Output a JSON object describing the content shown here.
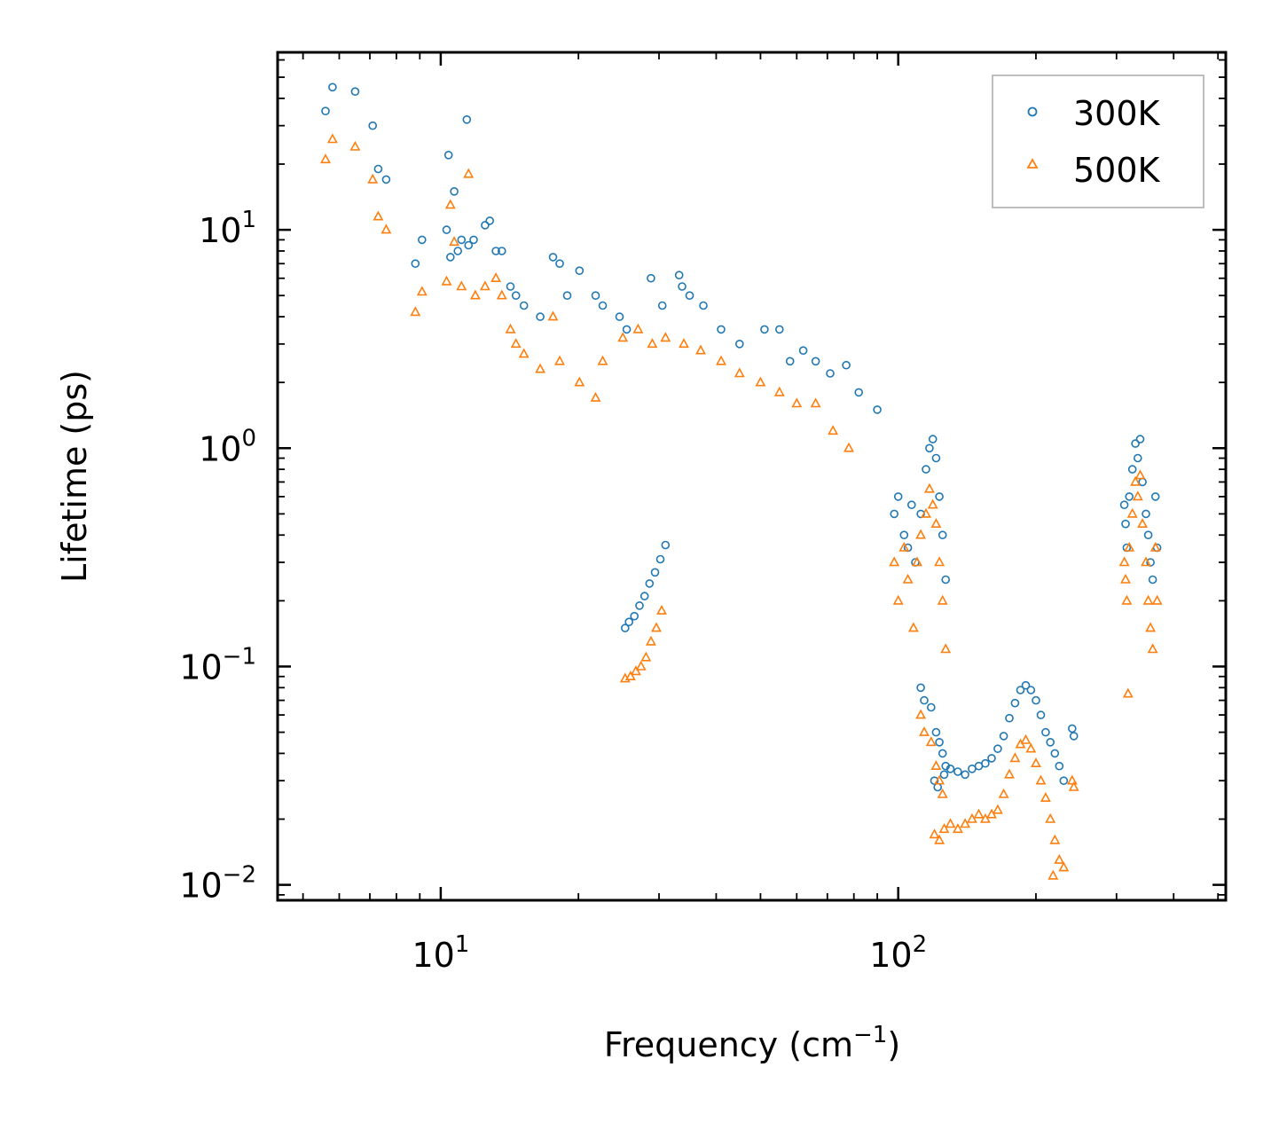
{
  "chart_data": {
    "type": "scatter",
    "xscale": "log",
    "yscale": "log",
    "xlabel": "Frequency (cm",
    "xlabel_exp": "−1",
    "xlabel_close": ")",
    "ylabel": "Lifetime (ps)",
    "xlim": [
      4.4,
      520
    ],
    "ylim": [
      0.0085,
      65
    ],
    "xticks": [
      {
        "value": 10,
        "base": "10",
        "exp": "1"
      },
      {
        "value": 100,
        "base": "10",
        "exp": "2"
      }
    ],
    "yticks": [
      {
        "value": 10,
        "base": "10",
        "exp": "1"
      },
      {
        "value": 1,
        "base": "10",
        "exp": "0"
      },
      {
        "value": 0.1,
        "base": "10",
        "exp": "−1"
      },
      {
        "value": 0.01,
        "base": "10",
        "exp": "−2"
      }
    ],
    "legend": {
      "position": "top-right"
    },
    "series": [
      {
        "name": "300K",
        "marker": "circle",
        "color": "#1f77b4",
        "points": [
          [
            5.6,
            35
          ],
          [
            5.8,
            45
          ],
          [
            6.5,
            43
          ],
          [
            7.1,
            30
          ],
          [
            7.3,
            19
          ],
          [
            7.6,
            17
          ],
          [
            8.8,
            7
          ],
          [
            9.1,
            9
          ],
          [
            10.3,
            10
          ],
          [
            10.4,
            22
          ],
          [
            10.5,
            7.5
          ],
          [
            10.7,
            15
          ],
          [
            10.9,
            8
          ],
          [
            11.1,
            9
          ],
          [
            11.4,
            32
          ],
          [
            11.5,
            8.5
          ],
          [
            11.8,
            9
          ],
          [
            12.5,
            10.5
          ],
          [
            12.8,
            11
          ],
          [
            13.2,
            8
          ],
          [
            13.6,
            8
          ],
          [
            14.2,
            5.5
          ],
          [
            14.6,
            5
          ],
          [
            15.2,
            4.5
          ],
          [
            16.5,
            4
          ],
          [
            17.6,
            7.5
          ],
          [
            18.2,
            7
          ],
          [
            18.9,
            5
          ],
          [
            20.1,
            6.5
          ],
          [
            21.8,
            5
          ],
          [
            22.6,
            4.5
          ],
          [
            24.6,
            4
          ],
          [
            25.5,
            3.5
          ],
          [
            28.8,
            6
          ],
          [
            30.5,
            4.5
          ],
          [
            33.2,
            6.2
          ],
          [
            33.7,
            5.5
          ],
          [
            35,
            5
          ],
          [
            37.5,
            4.5
          ],
          [
            41,
            3.5
          ],
          [
            45,
            3
          ],
          [
            51,
            3.5
          ],
          [
            55,
            3.5
          ],
          [
            58,
            2.5
          ],
          [
            62,
            2.8
          ],
          [
            66,
            2.5
          ],
          [
            71,
            2.2
          ],
          [
            77,
            2.4
          ],
          [
            82,
            1.8
          ],
          [
            90,
            1.5
          ],
          [
            25.3,
            0.15
          ],
          [
            25.8,
            0.16
          ],
          [
            26.5,
            0.17
          ],
          [
            27.2,
            0.19
          ],
          [
            27.9,
            0.21
          ],
          [
            28.6,
            0.24
          ],
          [
            29.4,
            0.27
          ],
          [
            30.2,
            0.31
          ],
          [
            31,
            0.36
          ],
          [
            98,
            0.5
          ],
          [
            100,
            0.6
          ],
          [
            103,
            0.4
          ],
          [
            105,
            0.35
          ],
          [
            107,
            0.55
          ],
          [
            109,
            0.3
          ],
          [
            112,
            0.5
          ],
          [
            115,
            0.8
          ],
          [
            117,
            1.0
          ],
          [
            119,
            1.1
          ],
          [
            121,
            0.9
          ],
          [
            123,
            0.6
          ],
          [
            125,
            0.4
          ],
          [
            127,
            0.25
          ],
          [
            112,
            0.08
          ],
          [
            114,
            0.07
          ],
          [
            118,
            0.065
          ],
          [
            121,
            0.05
          ],
          [
            123,
            0.045
          ],
          [
            125,
            0.04
          ],
          [
            127,
            0.035
          ],
          [
            120,
            0.03
          ],
          [
            122,
            0.028
          ],
          [
            126,
            0.032
          ],
          [
            130,
            0.034
          ],
          [
            135,
            0.033
          ],
          [
            140,
            0.032
          ],
          [
            145,
            0.034
          ],
          [
            150,
            0.035
          ],
          [
            155,
            0.036
          ],
          [
            160,
            0.038
          ],
          [
            165,
            0.042
          ],
          [
            170,
            0.048
          ],
          [
            175,
            0.058
          ],
          [
            180,
            0.068
          ],
          [
            185,
            0.078
          ],
          [
            190,
            0.082
          ],
          [
            195,
            0.078
          ],
          [
            200,
            0.07
          ],
          [
            205,
            0.06
          ],
          [
            210,
            0.05
          ],
          [
            215,
            0.045
          ],
          [
            220,
            0.04
          ],
          [
            225,
            0.035
          ],
          [
            230,
            0.03
          ],
          [
            240,
            0.052
          ],
          [
            242,
            0.048
          ],
          [
            312,
            0.55
          ],
          [
            314,
            0.45
          ],
          [
            316,
            0.35
          ],
          [
            320,
            0.6
          ],
          [
            325,
            0.8
          ],
          [
            330,
            1.05
          ],
          [
            334,
            0.9
          ],
          [
            338,
            1.1
          ],
          [
            342,
            0.7
          ],
          [
            348,
            0.5
          ],
          [
            352,
            0.4
          ],
          [
            356,
            0.3
          ],
          [
            360,
            0.25
          ],
          [
            365,
            0.6
          ],
          [
            368,
            0.35
          ]
        ]
      },
      {
        "name": "500K",
        "marker": "triangle",
        "color": "#ff7f0e",
        "points": [
          [
            5.6,
            21
          ],
          [
            5.8,
            26
          ],
          [
            6.5,
            24
          ],
          [
            7.1,
            17
          ],
          [
            7.3,
            11.5
          ],
          [
            7.6,
            10
          ],
          [
            8.8,
            4.2
          ],
          [
            9.1,
            5.2
          ],
          [
            10.3,
            5.8
          ],
          [
            10.5,
            13
          ],
          [
            10.7,
            8.8
          ],
          [
            11.1,
            5.5
          ],
          [
            11.5,
            18
          ],
          [
            11.9,
            5
          ],
          [
            12.5,
            5.5
          ],
          [
            13.2,
            6
          ],
          [
            13.6,
            5
          ],
          [
            14.2,
            3.5
          ],
          [
            14.6,
            3
          ],
          [
            15.2,
            2.7
          ],
          [
            16.5,
            2.3
          ],
          [
            17.6,
            4
          ],
          [
            18.2,
            2.5
          ],
          [
            20.1,
            2
          ],
          [
            21.8,
            1.7
          ],
          [
            22.6,
            2.5
          ],
          [
            25,
            3.2
          ],
          [
            27,
            3.5
          ],
          [
            29,
            3
          ],
          [
            31,
            3.2
          ],
          [
            34,
            3
          ],
          [
            37,
            2.8
          ],
          [
            41,
            2.5
          ],
          [
            45,
            2.2
          ],
          [
            50,
            2
          ],
          [
            55,
            1.8
          ],
          [
            60,
            1.6
          ],
          [
            66,
            1.6
          ],
          [
            72,
            1.2
          ],
          [
            78,
            1
          ],
          [
            25.3,
            0.088
          ],
          [
            26,
            0.09
          ],
          [
            26.7,
            0.095
          ],
          [
            27.4,
            0.1
          ],
          [
            28.1,
            0.11
          ],
          [
            28.8,
            0.13
          ],
          [
            29.6,
            0.15
          ],
          [
            30.4,
            0.18
          ],
          [
            98,
            0.3
          ],
          [
            100,
            0.2
          ],
          [
            103,
            0.35
          ],
          [
            105,
            0.25
          ],
          [
            108,
            0.15
          ],
          [
            110,
            0.3
          ],
          [
            112,
            0.4
          ],
          [
            115,
            0.5
          ],
          [
            117,
            0.65
          ],
          [
            119,
            0.55
          ],
          [
            121,
            0.45
          ],
          [
            123,
            0.3
          ],
          [
            125,
            0.2
          ],
          [
            127,
            0.12
          ],
          [
            112,
            0.06
          ],
          [
            114,
            0.05
          ],
          [
            118,
            0.045
          ],
          [
            121,
            0.035
          ],
          [
            123,
            0.03
          ],
          [
            125,
            0.026
          ],
          [
            120,
            0.017
          ],
          [
            123,
            0.016
          ],
          [
            126,
            0.018
          ],
          [
            130,
            0.019
          ],
          [
            135,
            0.018
          ],
          [
            140,
            0.019
          ],
          [
            145,
            0.02
          ],
          [
            150,
            0.021
          ],
          [
            155,
            0.02
          ],
          [
            160,
            0.021
          ],
          [
            165,
            0.022
          ],
          [
            170,
            0.026
          ],
          [
            175,
            0.032
          ],
          [
            180,
            0.038
          ],
          [
            185,
            0.044
          ],
          [
            190,
            0.046
          ],
          [
            195,
            0.042
          ],
          [
            200,
            0.036
          ],
          [
            205,
            0.03
          ],
          [
            210,
            0.025
          ],
          [
            215,
            0.02
          ],
          [
            220,
            0.016
          ],
          [
            225,
            0.013
          ],
          [
            230,
            0.012
          ],
          [
            240,
            0.03
          ],
          [
            242,
            0.028
          ],
          [
            218,
            0.011
          ],
          [
            312,
            0.3
          ],
          [
            314,
            0.25
          ],
          [
            316,
            0.2
          ],
          [
            320,
            0.35
          ],
          [
            325,
            0.5
          ],
          [
            330,
            0.7
          ],
          [
            334,
            0.6
          ],
          [
            338,
            0.75
          ],
          [
            342,
            0.45
          ],
          [
            348,
            0.3
          ],
          [
            352,
            0.2
          ],
          [
            356,
            0.15
          ],
          [
            360,
            0.12
          ],
          [
            365,
            0.35
          ],
          [
            368,
            0.2
          ],
          [
            318,
            0.075
          ]
        ]
      }
    ]
  }
}
